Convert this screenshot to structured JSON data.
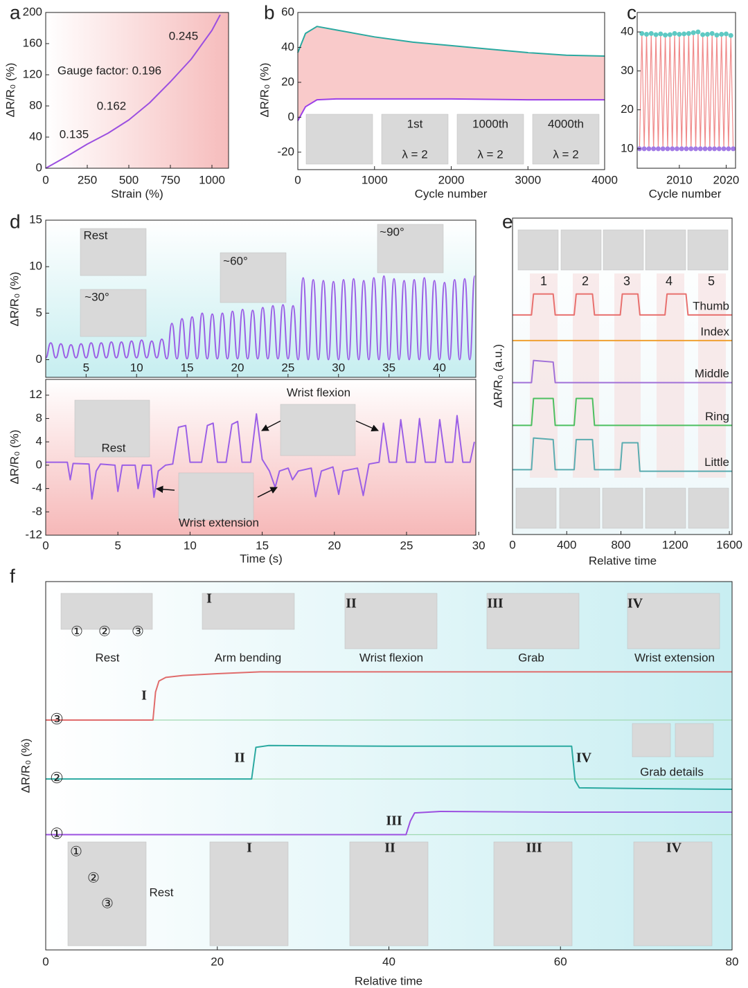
{
  "chart_data": [
    {
      "type": "line",
      "panel": "a",
      "xlabel": "Strain (%)",
      "ylabel": "ΔR/R₀ (%)",
      "xlim": [
        0,
        1100
      ],
      "ylim": [
        0,
        200
      ],
      "xticks": [
        0,
        250,
        500,
        750,
        1000
      ],
      "yticks": [
        0,
        40,
        80,
        120,
        160,
        200
      ],
      "series": [
        {
          "color": "#9b4fe0",
          "x": [
            0,
            125,
            250,
            375,
            500,
            625,
            750,
            875,
            1000,
            1050
          ],
          "values": [
            0,
            15,
            31,
            45,
            62,
            84,
            111,
            140,
            177,
            197
          ]
        }
      ],
      "annotations": [
        "0.135",
        "0.162",
        "Gauge factor: 0.196",
        "0.245"
      ]
    },
    {
      "type": "line",
      "panel": "b",
      "xlabel": "Cycle number",
      "ylabel": "ΔR/R₀ (%)",
      "xlim": [
        0,
        4000
      ],
      "ylim": [
        -30,
        60
      ],
      "xticks": [
        0,
        1000,
        2000,
        3000,
        4000
      ],
      "yticks": [
        -20,
        0,
        20,
        40,
        60
      ],
      "series": [
        {
          "color": "#2aa9a0",
          "fill": "#f9caca",
          "x": [
            0,
            100,
            250,
            500,
            1000,
            1500,
            2000,
            2500,
            3000,
            3500,
            4000
          ],
          "values": [
            37,
            48,
            52,
            50,
            46,
            43,
            41,
            39,
            37,
            35.5,
            35
          ]
        },
        {
          "color": "#9b3fe8",
          "fill": "#ffffff",
          "x": [
            0,
            100,
            250,
            500,
            1000,
            2000,
            3000,
            4000
          ],
          "values": [
            -2,
            6,
            10,
            10.5,
            10.5,
            10.5,
            10,
            10
          ]
        }
      ],
      "annotations": [
        "1st",
        "λ = 2",
        "1000th",
        "λ = 2",
        "4000th",
        "λ = 2"
      ]
    },
    {
      "type": "line",
      "panel": "c",
      "xlabel": "Cycle number",
      "xlim": [
        2001,
        2022
      ],
      "ylim": [
        5,
        45
      ],
      "xticks": [
        2010,
        2020
      ],
      "yticks": [
        10,
        20,
        30,
        40
      ],
      "markers": true,
      "marker_colors": [
        "#a27be6",
        "#5ec9c3"
      ],
      "series": [
        {
          "color": "#f08a8a",
          "x": [
            2001.5,
            2002,
            2002.5,
            2003,
            2003.5,
            2004,
            2004.5,
            2005,
            2005.5,
            2006,
            2006.5,
            2007,
            2007.5,
            2008,
            2008.5,
            2009,
            2009.5,
            2010,
            2010.5,
            2011,
            2011.5,
            2012,
            2012.5,
            2013,
            2013.5,
            2014,
            2014.5,
            2015,
            2015.5,
            2016,
            2016.5,
            2017,
            2017.5,
            2018,
            2018.5,
            2019,
            2019.5,
            2020,
            2020.5,
            2021,
            2021.5
          ],
          "values": [
            10,
            39.6,
            10,
            39.4,
            10,
            39.6,
            10,
            39.3,
            10,
            39.5,
            10,
            39.2,
            10,
            39.3,
            10,
            39.6,
            10,
            39.4,
            10,
            39.5,
            10,
            39.6,
            10,
            39.8,
            10,
            40,
            10,
            39.3,
            10,
            39.4,
            10,
            39.6,
            10,
            39.2,
            10,
            39.4,
            10,
            39.5,
            10,
            39.1,
            10
          ]
        }
      ]
    },
    {
      "type": "line",
      "panel": "d",
      "ylabel": "ΔR/R₀ (%)",
      "smooth": true,
      "xlim": [
        1,
        43.6
      ],
      "ylim": [
        -1.9,
        15
      ],
      "xticks": [
        5,
        10,
        15,
        20,
        25,
        30,
        35,
        40
      ],
      "yticks": [
        0,
        5,
        10,
        15
      ],
      "series": [
        {
          "color": "#9b5fe6",
          "x": [
            1,
            1.5,
            2,
            2.5,
            3,
            3.5,
            4,
            4.5,
            5,
            5.5,
            6,
            6.5,
            7,
            7.5,
            8,
            8.5,
            9,
            9.5,
            10,
            10.5,
            11,
            11.5,
            12,
            12.5,
            13,
            13.5,
            14,
            14.5,
            15,
            15.5,
            16,
            16.5,
            17,
            17.5,
            18,
            18.5,
            19,
            19.5,
            20,
            20.5,
            21,
            21.5,
            22,
            22.5,
            23,
            23.5,
            24,
            24.5,
            25,
            25.5,
            26,
            26.5,
            27,
            27.5,
            28,
            28.5,
            29,
            29.5,
            30,
            30.5,
            31,
            31.5,
            32,
            32.5,
            33,
            33.5,
            34,
            34.5,
            35,
            35.5,
            36,
            36.5,
            37,
            37.5,
            38,
            38.5,
            39,
            39.5,
            40,
            40.5,
            41,
            41.5,
            42,
            42.5,
            43,
            43.5
          ],
          "values": [
            0.2,
            1.8,
            0.2,
            1.7,
            0.2,
            1.6,
            0.2,
            1.7,
            0.2,
            1.8,
            0.2,
            1.8,
            0.2,
            1.9,
            0.2,
            1.9,
            0.2,
            2.0,
            0.2,
            2.1,
            0.2,
            2.0,
            0.2,
            2.2,
            0.1,
            3.9,
            0.1,
            4.4,
            0.1,
            4.6,
            0.1,
            5.0,
            0.1,
            4.9,
            0.1,
            5.0,
            0.1,
            5.2,
            0.1,
            5.4,
            0.1,
            5.3,
            0.1,
            5.6,
            0.1,
            5.8,
            0.1,
            5.9,
            0.1,
            5.8,
            0,
            8.8,
            0,
            8.6,
            0,
            8.5,
            0,
            8.4,
            0,
            8.6,
            0,
            8.7,
            0,
            8.5,
            0,
            8.8,
            0,
            9.0,
            0,
            8.7,
            0,
            8.5,
            0,
            8.6,
            0,
            8.8,
            0,
            8.5,
            0,
            8.3,
            0,
            8.6,
            0,
            8.7,
            0,
            9.0
          ]
        }
      ],
      "annotations": [
        "Rest",
        "~30°",
        "~60°",
        "~90°"
      ]
    },
    {
      "type": "line",
      "xlabel": "Time (s)",
      "ylabel": "ΔR/R₀ (%)",
      "xlim": [
        0,
        29.8
      ],
      "ylim": [
        -12,
        14.7
      ],
      "xticks": [
        0,
        5,
        10,
        15,
        20,
        25,
        30
      ],
      "yticks": [
        -12,
        -8,
        -4,
        0,
        4,
        8,
        12
      ],
      "series": [
        {
          "color": "#9b5fe6",
          "x": [
            0,
            1.5,
            1.7,
            1.9,
            3.0,
            3.2,
            3.5,
            3.8,
            4.8,
            5.0,
            5.3,
            6.2,
            6.4,
            6.7,
            7.3,
            7.5,
            7.8,
            8.3,
            8.8,
            9.2,
            9.7,
            10.0,
            10.8,
            11.2,
            11.6,
            11.9,
            12.5,
            12.9,
            13.3,
            13.6,
            14.2,
            14.6,
            15.0,
            15.5,
            15.9,
            16.2,
            16.8,
            17.1,
            17.5,
            18.4,
            18.7,
            19.1,
            19.9,
            20.3,
            20.6,
            21.6,
            22,
            22.4,
            23.1,
            23.4,
            23.8,
            24.3,
            24.6,
            25.0,
            25.6,
            25.9,
            26.3,
            27.0,
            27.3,
            27.7,
            28.2,
            28.5,
            28.9,
            29.4,
            29.7
          ],
          "values": [
            0.5,
            0.5,
            -2.5,
            0.3,
            0.2,
            -5.8,
            -1,
            0.2,
            0,
            -4.5,
            0,
            0,
            -4.0,
            0,
            0,
            -5.5,
            -1,
            0,
            0.2,
            6.5,
            6.8,
            0.5,
            0.5,
            6.8,
            7.2,
            0.5,
            0.5,
            7.0,
            7.5,
            0.5,
            0.5,
            8.8,
            1,
            -1,
            -3.8,
            -1,
            -0.5,
            -2.5,
            -1,
            -0.5,
            -5.4,
            -1,
            -0.3,
            -5.0,
            -1,
            -0.5,
            -5.2,
            0.2,
            0.5,
            7.2,
            0.5,
            0.5,
            7.8,
            0.5,
            0.5,
            8.0,
            0.5,
            0.5,
            7.8,
            0.5,
            0.5,
            8.5,
            0.5,
            0.5,
            4
          ]
        }
      ],
      "annotations": [
        "Rest",
        "Wrist flexion",
        "Wrist extension"
      ]
    },
    {
      "type": "line",
      "panel": "e",
      "xlabel": "Relative time",
      "ylabel": "ΔR/R₀ (a.u.)",
      "legend": "right-inline",
      "xlim": [
        0,
        1620
      ],
      "ylim": [
        0,
        10
      ],
      "xticks": [
        0,
        400,
        800,
        1200,
        1600
      ],
      "series": [
        {
          "name": "Thumb",
          "color": "#e8706e",
          "x": [
            0,
            140,
            155,
            300,
            315,
            455,
            470,
            590,
            605,
            795,
            810,
            925,
            940,
            1125,
            1140,
            1280,
            1295,
            1620
          ],
          "values": [
            6.94,
            6.94,
            7.6,
            7.6,
            6.94,
            6.94,
            7.6,
            7.6,
            6.94,
            6.94,
            7.6,
            7.6,
            6.94,
            6.94,
            7.6,
            7.6,
            6.94,
            6.94
          ]
        },
        {
          "name": "Index",
          "color": "#f0a030",
          "x": [
            0,
            1620
          ],
          "values": [
            6.13,
            6.13
          ]
        },
        {
          "name": "Middle",
          "color": "#a070d8",
          "x": [
            0,
            140,
            155,
            300,
            315,
            1620
          ],
          "values": [
            4.8,
            4.8,
            5.5,
            5.45,
            4.8,
            4.8
          ]
        },
        {
          "name": "Ring",
          "color": "#4cbf60",
          "x": [
            0,
            140,
            155,
            300,
            315,
            455,
            470,
            590,
            605,
            1620
          ],
          "values": [
            3.45,
            3.45,
            4.3,
            4.3,
            3.45,
            3.45,
            4.3,
            4.3,
            3.45,
            3.45
          ]
        },
        {
          "name": "Little",
          "color": "#5aacb0",
          "x": [
            0,
            140,
            155,
            300,
            315,
            455,
            470,
            590,
            605,
            795,
            810,
            925,
            940,
            1620
          ],
          "values": [
            2.05,
            2.05,
            3.05,
            3.0,
            2.05,
            2.05,
            3.0,
            3.0,
            2.05,
            2.05,
            2.9,
            2.9,
            2.0,
            2.0
          ]
        }
      ],
      "annotations": [
        "1",
        "2",
        "3",
        "4",
        "5"
      ]
    },
    {
      "type": "line",
      "panel": "f",
      "xlabel": "Relative time",
      "ylabel": "ΔR/R₀ (%)",
      "legend": "left-inline",
      "xlim": [
        0,
        80
      ],
      "ylim": [
        0,
        10
      ],
      "xticks": [
        0,
        20,
        40,
        60,
        80
      ],
      "series": [
        {
          "name": "③",
          "color": "#e06b6b",
          "x": [
            0,
            12.5,
            12.8,
            13.2,
            14,
            16,
            20,
            25,
            30,
            40,
            50,
            60,
            70,
            80
          ],
          "values": [
            6.24,
            6.24,
            7.0,
            7.3,
            7.4,
            7.45,
            7.5,
            7.55,
            7.55,
            7.55,
            7.55,
            7.55,
            7.55,
            7.55
          ]
        },
        {
          "name": "②",
          "color": "#2aa9a0",
          "x": [
            0,
            24,
            24.5,
            26,
            40,
            61.3,
            61.7,
            62.2,
            70,
            80
          ],
          "values": [
            4.64,
            4.64,
            5.5,
            5.55,
            5.53,
            5.53,
            4.6,
            4.4,
            4.38,
            4.36
          ]
        },
        {
          "name": "①",
          "color": "#9b4fe0",
          "x": [
            0,
            42,
            42.5,
            43,
            46,
            60,
            80
          ],
          "values": [
            3.13,
            3.13,
            3.5,
            3.72,
            3.76,
            3.74,
            3.74
          ]
        }
      ],
      "annotations": [
        "Rest",
        "Arm bending",
        "Wrist flexion",
        "Grab",
        "Wrist extension",
        "I",
        "II",
        "III",
        "IV",
        "①",
        "②",
        "③",
        "I",
        "II",
        "III",
        "IV",
        "Grab details",
        "①",
        "②",
        "③",
        "Rest",
        "I",
        "II",
        "III",
        "IV"
      ]
    }
  ]
}
